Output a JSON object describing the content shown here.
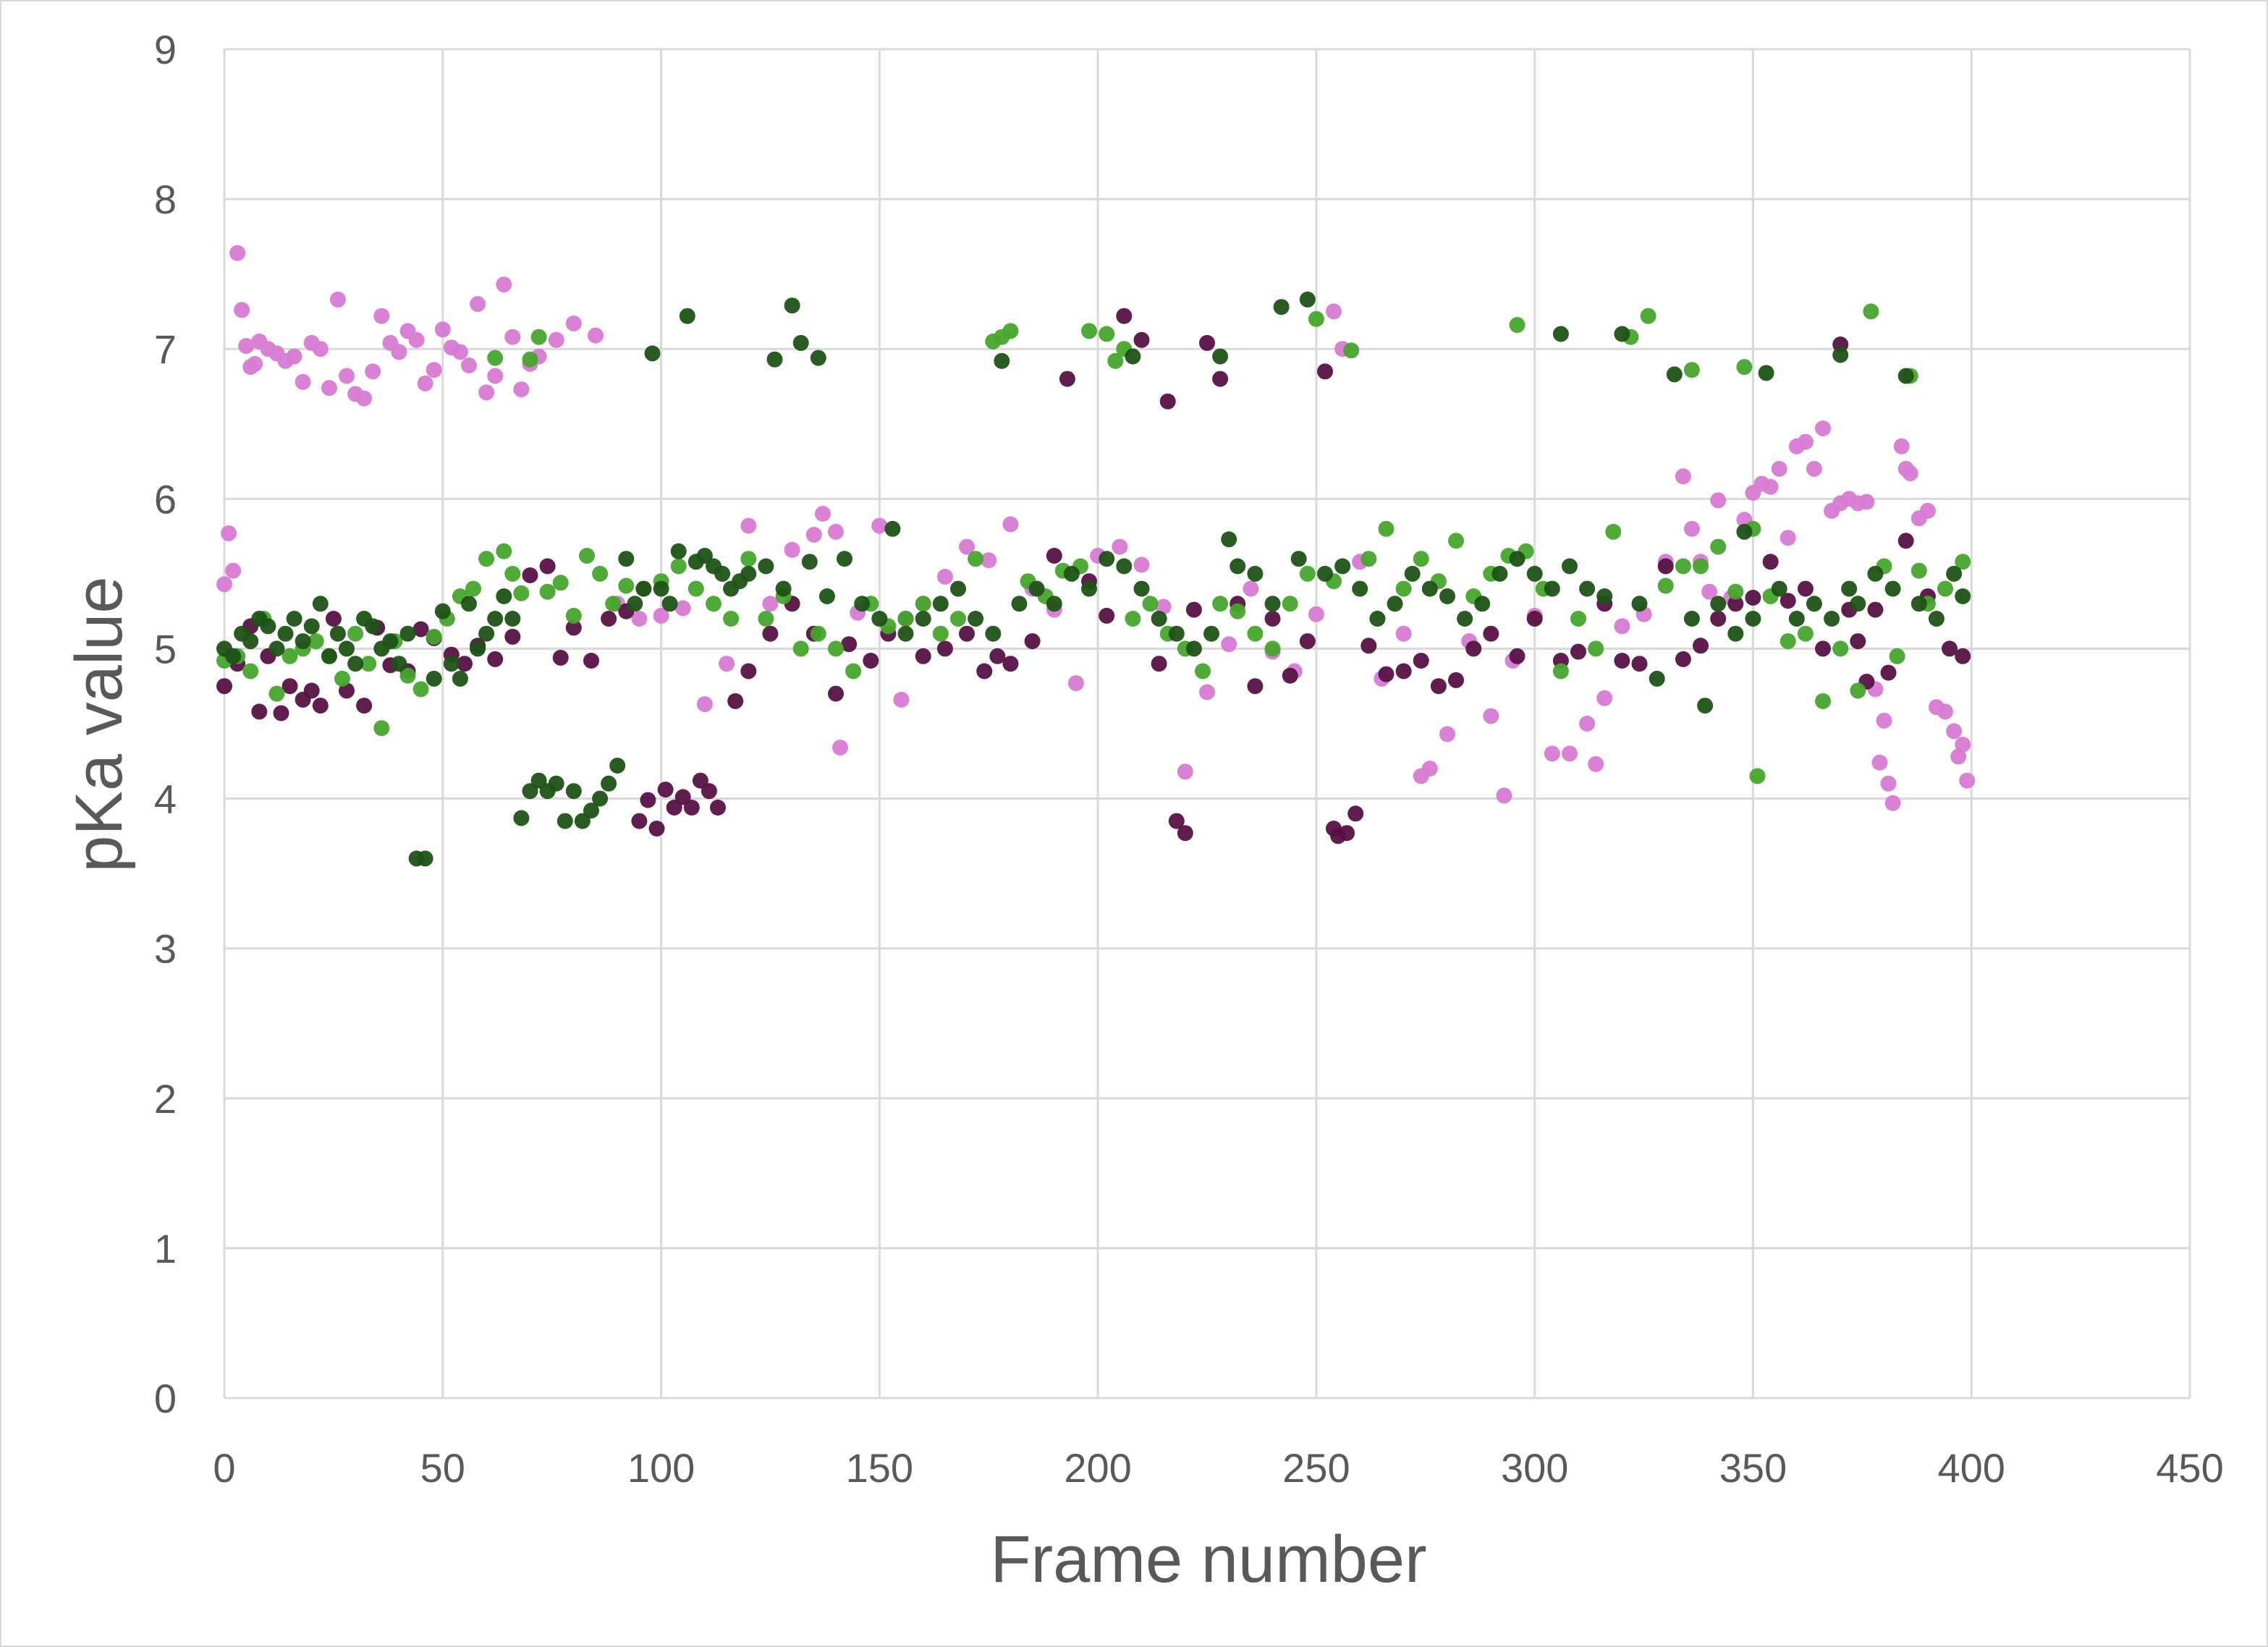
{
  "chart_data": {
    "type": "scatter",
    "title": "",
    "xlabel": "Frame number",
    "ylabel": "pKa value",
    "xlim": [
      0,
      450
    ],
    "ylim": [
      0,
      9
    ],
    "x_ticks": [
      "0",
      "50",
      "100",
      "150",
      "200",
      "250",
      "300",
      "350",
      "400",
      "450"
    ],
    "y_ticks": [
      "0",
      "1",
      "2",
      "3",
      "4",
      "5",
      "6",
      "7",
      "8",
      "9"
    ],
    "grid": true,
    "legend": "none",
    "colors": [
      "#d77bd3",
      "#561245",
      "#46a52c",
      "#1e5217"
    ],
    "series": [
      {
        "color": "#d77bd3",
        "x": [
          0,
          1,
          2,
          3,
          4,
          5,
          6,
          7,
          8,
          10,
          12,
          14,
          16,
          18,
          20,
          22,
          24,
          26,
          28,
          30,
          32,
          34,
          36,
          38,
          40,
          42,
          44,
          46,
          48,
          50,
          52,
          54,
          56,
          58,
          60,
          62,
          64,
          66,
          68,
          70,
          72,
          76,
          80,
          85,
          90,
          95,
          100,
          105,
          110,
          115,
          120,
          125,
          130,
          135,
          137,
          140,
          141,
          145,
          150,
          155,
          160,
          165,
          170,
          175,
          180,
          185,
          190,
          195,
          200,
          205,
          210,
          215,
          220,
          225,
          230,
          235,
          240,
          245,
          250,
          254,
          256,
          260,
          265,
          270,
          274,
          276,
          280,
          285,
          290,
          293,
          295,
          300,
          304,
          308,
          312,
          314,
          316,
          320,
          325,
          330,
          334,
          336,
          338,
          340,
          342,
          345,
          348,
          350,
          352,
          354,
          356,
          358,
          360,
          362,
          364,
          366,
          368,
          370,
          372,
          374,
          376,
          378,
          379,
          380,
          381,
          382,
          384,
          385,
          386,
          388,
          390,
          392,
          394,
          396,
          397,
          398,
          399
        ],
        "y": [
          5.43,
          5.77,
          5.52,
          7.64,
          7.26,
          7.02,
          6.88,
          6.9,
          7.05,
          7.0,
          6.97,
          6.92,
          6.95,
          6.78,
          7.04,
          7.0,
          6.74,
          7.33,
          6.82,
          6.7,
          6.67,
          6.85,
          7.22,
          7.04,
          6.98,
          7.12,
          7.06,
          6.77,
          6.86,
          7.13,
          7.01,
          6.98,
          6.89,
          7.3,
          6.71,
          6.82,
          7.43,
          7.08,
          6.73,
          6.9,
          6.95,
          7.06,
          7.17,
          7.09,
          5.3,
          5.2,
          5.22,
          5.27,
          4.63,
          4.9,
          5.82,
          5.3,
          5.66,
          5.76,
          5.9,
          5.78,
          4.34,
          5.24,
          5.82,
          4.66,
          5.3,
          5.48,
          5.68,
          5.59,
          5.83,
          5.4,
          5.26,
          4.77,
          5.62,
          5.68,
          5.56,
          5.28,
          4.18,
          4.71,
          5.03,
          5.4,
          4.98,
          4.85,
          5.23,
          7.25,
          7.0,
          5.58,
          4.8,
          5.1,
          4.15,
          4.2,
          4.43,
          5.05,
          4.55,
          4.02,
          4.92,
          5.22,
          4.3,
          4.3,
          4.5,
          4.23,
          4.67,
          5.15,
          5.23,
          5.58,
          6.15,
          5.8,
          5.58,
          5.38,
          5.99,
          5.34,
          5.86,
          6.04,
          6.1,
          6.08,
          6.2,
          5.74,
          6.35,
          6.38,
          6.2,
          6.47,
          5.92,
          5.97,
          6.0,
          5.97,
          5.98,
          4.73,
          4.24,
          4.52,
          4.1,
          3.97,
          6.35,
          6.2,
          6.17,
          5.87,
          5.92,
          4.61,
          4.58,
          4.45,
          4.28,
          4.36,
          4.12
        ]
      },
      {
        "color": "#561245",
        "x": [
          0,
          3,
          6,
          8,
          10,
          13,
          15,
          18,
          20,
          22,
          25,
          28,
          32,
          35,
          38,
          42,
          45,
          48,
          52,
          55,
          58,
          62,
          66,
          70,
          74,
          77,
          80,
          84,
          88,
          92,
          95,
          97,
          99,
          101,
          103,
          105,
          107,
          109,
          111,
          113,
          117,
          120,
          125,
          130,
          135,
          140,
          143,
          148,
          152,
          156,
          160,
          165,
          170,
          174,
          177,
          180,
          185,
          190,
          193,
          198,
          202,
          206,
          210,
          214,
          216,
          218,
          220,
          222,
          225,
          228,
          232,
          236,
          240,
          244,
          248,
          252,
          254,
          255,
          257,
          259,
          262,
          266,
          270,
          274,
          278,
          282,
          286,
          290,
          296,
          300,
          306,
          310,
          316,
          320,
          324,
          330,
          334,
          338,
          342,
          346,
          350,
          354,
          358,
          362,
          366,
          370,
          372,
          374,
          376,
          378,
          381,
          385,
          390,
          395,
          398
        ],
        "y": [
          4.75,
          4.9,
          5.15,
          4.58,
          4.95,
          4.57,
          4.75,
          4.66,
          4.72,
          4.62,
          5.2,
          4.72,
          4.62,
          5.14,
          4.89,
          4.85,
          5.13,
          5.07,
          4.96,
          4.9,
          5.02,
          4.93,
          5.08,
          5.49,
          5.55,
          4.94,
          5.14,
          4.92,
          5.2,
          5.25,
          3.85,
          3.99,
          3.8,
          4.06,
          3.94,
          4.01,
          3.94,
          4.12,
          4.05,
          3.94,
          4.65,
          4.85,
          5.1,
          5.3,
          5.1,
          4.7,
          5.03,
          4.92,
          5.1,
          5.2,
          4.95,
          5.0,
          5.1,
          4.85,
          4.95,
          4.9,
          5.05,
          5.62,
          6.8,
          5.45,
          5.22,
          7.22,
          7.06,
          4.9,
          6.65,
          3.85,
          3.77,
          5.26,
          7.04,
          6.8,
          5.3,
          4.75,
          5.2,
          4.82,
          5.05,
          6.85,
          3.8,
          3.75,
          3.77,
          3.9,
          5.02,
          4.83,
          4.85,
          4.92,
          4.75,
          4.79,
          5.0,
          5.1,
          4.95,
          5.2,
          4.92,
          4.98,
          5.3,
          4.92,
          4.9,
          5.55,
          4.93,
          5.02,
          5.2,
          5.3,
          5.34,
          5.58,
          5.32,
          5.4,
          5.0,
          7.03,
          5.26,
          5.05,
          4.78,
          5.26,
          4.84,
          5.72,
          5.35,
          5.0,
          4.95
        ]
      },
      {
        "color": "#46a52c",
        "x": [
          0,
          3,
          6,
          9,
          12,
          15,
          18,
          21,
          24,
          27,
          30,
          33,
          36,
          39,
          42,
          45,
          48,
          51,
          54,
          57,
          60,
          62,
          64,
          66,
          68,
          70,
          72,
          74,
          77,
          80,
          83,
          86,
          89,
          92,
          96,
          100,
          104,
          108,
          112,
          116,
          120,
          124,
          128,
          132,
          136,
          140,
          144,
          148,
          152,
          156,
          160,
          164,
          168,
          172,
          176,
          178,
          180,
          184,
          188,
          192,
          196,
          198,
          202,
          204,
          206,
          208,
          212,
          216,
          220,
          224,
          228,
          232,
          236,
          240,
          244,
          248,
          250,
          254,
          258,
          262,
          266,
          270,
          274,
          278,
          282,
          286,
          290,
          294,
          296,
          298,
          302,
          306,
          310,
          314,
          318,
          322,
          326,
          330,
          334,
          336,
          338,
          342,
          346,
          348,
          350,
          351,
          354,
          358,
          362,
          366,
          370,
          374,
          377,
          380,
          383,
          386,
          388,
          390,
          394,
          398
        ],
        "y": [
          4.92,
          4.95,
          4.85,
          5.2,
          4.7,
          4.95,
          5.0,
          5.05,
          4.95,
          4.8,
          5.1,
          4.9,
          4.47,
          5.05,
          4.82,
          4.73,
          5.08,
          5.2,
          5.35,
          5.4,
          5.6,
          6.94,
          5.65,
          5.5,
          5.37,
          6.93,
          7.08,
          5.38,
          5.44,
          5.22,
          5.62,
          5.5,
          5.3,
          5.42,
          5.4,
          5.45,
          5.55,
          5.4,
          5.3,
          5.2,
          5.6,
          5.2,
          5.35,
          5.0,
          5.1,
          5.0,
          4.85,
          5.3,
          5.15,
          5.2,
          5.3,
          5.1,
          5.2,
          5.6,
          7.05,
          7.08,
          7.12,
          5.45,
          5.35,
          5.52,
          5.55,
          7.12,
          7.1,
          6.92,
          7.0,
          5.2,
          5.3,
          5.1,
          5.0,
          4.85,
          5.3,
          5.25,
          5.1,
          5.0,
          5.3,
          5.5,
          7.2,
          5.45,
          6.99,
          5.6,
          5.8,
          5.4,
          5.6,
          5.45,
          5.72,
          5.35,
          5.5,
          5.62,
          7.16,
          5.65,
          5.4,
          4.85,
          5.2,
          5.0,
          5.78,
          7.08,
          7.22,
          5.42,
          5.55,
          6.86,
          5.55,
          5.68,
          5.38,
          6.88,
          5.8,
          4.15,
          5.35,
          5.05,
          5.1,
          4.65,
          5.0,
          4.72,
          7.25,
          5.55,
          4.95,
          6.82,
          5.52,
          5.3,
          5.4,
          5.58
        ]
      },
      {
        "color": "#1e5217",
        "x": [
          0,
          2,
          4,
          6,
          8,
          10,
          12,
          14,
          16,
          18,
          20,
          22,
          24,
          26,
          28,
          30,
          32,
          34,
          36,
          38,
          40,
          42,
          44,
          46,
          48,
          50,
          52,
          54,
          56,
          58,
          60,
          62,
          64,
          66,
          68,
          70,
          72,
          74,
          76,
          78,
          80,
          82,
          84,
          86,
          88,
          90,
          92,
          94,
          96,
          98,
          100,
          102,
          104,
          106,
          108,
          110,
          112,
          114,
          116,
          118,
          120,
          124,
          126,
          128,
          130,
          132,
          134,
          136,
          138,
          142,
          146,
          150,
          153,
          156,
          160,
          164,
          168,
          172,
          176,
          178,
          182,
          186,
          190,
          194,
          198,
          202,
          206,
          208,
          210,
          214,
          218,
          222,
          226,
          228,
          230,
          232,
          236,
          240,
          242,
          246,
          248,
          252,
          256,
          260,
          264,
          268,
          272,
          276,
          280,
          284,
          288,
          292,
          296,
          300,
          304,
          306,
          308,
          312,
          316,
          320,
          324,
          328,
          332,
          336,
          339,
          342,
          346,
          348,
          350,
          353,
          356,
          360,
          364,
          368,
          370,
          372,
          374,
          378,
          382,
          385,
          388,
          392,
          396,
          398
        ],
        "y": [
          5.0,
          4.95,
          5.1,
          5.05,
          5.2,
          5.15,
          5.0,
          5.1,
          5.2,
          5.05,
          5.15,
          5.3,
          4.95,
          5.1,
          5.0,
          4.9,
          5.2,
          5.15,
          5.0,
          5.05,
          4.9,
          5.1,
          3.6,
          3.6,
          4.8,
          5.25,
          4.9,
          4.8,
          5.3,
          5.0,
          5.1,
          5.2,
          5.35,
          5.2,
          3.87,
          4.05,
          4.12,
          4.05,
          4.1,
          3.85,
          4.05,
          3.85,
          3.92,
          4.0,
          4.1,
          4.22,
          5.6,
          5.3,
          5.4,
          6.97,
          5.4,
          5.3,
          5.65,
          7.22,
          5.58,
          5.62,
          5.55,
          5.5,
          5.4,
          5.45,
          5.5,
          5.55,
          6.93,
          5.4,
          7.29,
          7.04,
          5.58,
          6.94,
          5.35,
          5.6,
          5.3,
          5.2,
          5.8,
          5.1,
          5.2,
          5.3,
          5.4,
          5.2,
          5.1,
          6.92,
          5.3,
          5.4,
          5.3,
          5.5,
          5.4,
          5.6,
          5.55,
          6.95,
          5.4,
          5.2,
          5.1,
          5.0,
          5.1,
          6.95,
          5.73,
          5.55,
          5.5,
          5.3,
          7.28,
          5.6,
          7.33,
          5.5,
          5.55,
          5.4,
          5.2,
          5.3,
          5.5,
          5.4,
          5.35,
          5.2,
          5.3,
          5.5,
          5.6,
          5.5,
          5.4,
          7.1,
          5.55,
          5.4,
          5.35,
          7.1,
          5.3,
          4.8,
          6.83,
          5.2,
          4.62,
          5.3,
          5.1,
          5.78,
          5.2,
          6.84,
          5.4,
          5.2,
          5.3,
          5.2,
          6.96,
          5.4,
          5.3,
          5.5,
          5.4,
          6.82,
          5.3,
          5.2,
          5.5,
          5.35
        ]
      }
    ]
  }
}
